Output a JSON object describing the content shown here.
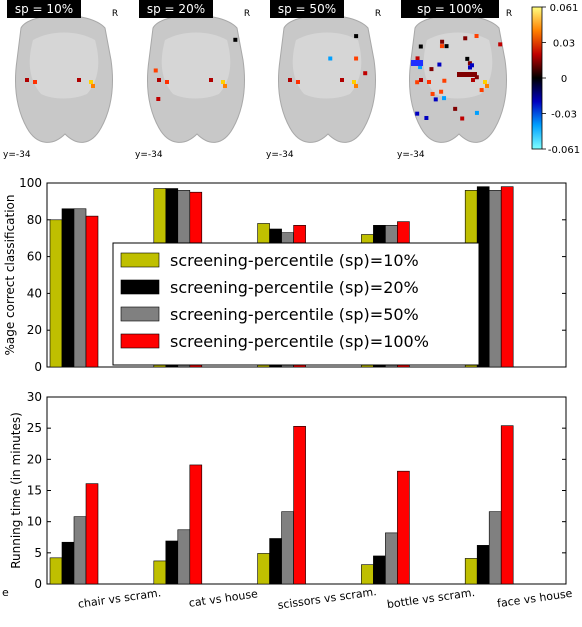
{
  "brain_panels": [
    {
      "label": "sp = 10%",
      "orientation": "R",
      "coord": "y=-34"
    },
    {
      "label": "sp = 20%",
      "orientation": "R",
      "coord": "y=-34"
    },
    {
      "label": "sp = 50%",
      "orientation": "R",
      "coord": "y=-34"
    },
    {
      "label": "sp = 100%",
      "orientation": "R",
      "coord": "y=-34"
    }
  ],
  "colorbar": {
    "ticks": [
      "0.061",
      "0.03",
      "0",
      "-0.03",
      "-0.061"
    ],
    "colors": [
      "#ffff80",
      "#ff8000",
      "#c00000",
      "#000000",
      "#0000c0",
      "#00a0ff",
      "#80ffff"
    ]
  },
  "chart_data": [
    {
      "type": "bar",
      "ylabel": "%age correct classification",
      "ylim": [
        0,
        100
      ],
      "yticks": [
        0,
        20,
        40,
        60,
        80,
        100
      ],
      "legend_position": "center",
      "categories": [
        "chair vs scram.",
        "cat vs house",
        "scissors vs scram.",
        "bottle vs scram.",
        "face vs house"
      ],
      "series": [
        {
          "name": "screening-percentile (sp)=10%",
          "color": "#bfbf00",
          "values": [
            80,
            97,
            78,
            72,
            96
          ]
        },
        {
          "name": "screening-percentile (sp)=20%",
          "color": "#000000",
          "values": [
            86,
            97,
            75,
            77,
            98
          ]
        },
        {
          "name": "screening-percentile (sp)=50%",
          "color": "#808080",
          "values": [
            86,
            96,
            73,
            77,
            96
          ]
        },
        {
          "name": "screening-percentile (sp)=100%",
          "color": "#ff0000",
          "values": [
            82,
            95,
            77,
            79,
            98
          ]
        }
      ]
    },
    {
      "type": "bar",
      "ylabel": "Running time (in minutes)",
      "ylim": [
        0,
        30
      ],
      "yticks": [
        0,
        5,
        10,
        15,
        20,
        25,
        30
      ],
      "categories": [
        "chair vs scram.",
        "cat vs house",
        "scissors vs scram.",
        "bottle vs scram.",
        "face vs house"
      ],
      "xlabel_leading": "e",
      "series": [
        {
          "name": "screening-percentile (sp)=10%",
          "color": "#bfbf00",
          "values": [
            4.2,
            3.7,
            4.9,
            3.1,
            4.1
          ]
        },
        {
          "name": "screening-percentile (sp)=20%",
          "color": "#000000",
          "values": [
            6.7,
            6.9,
            7.3,
            4.5,
            6.2
          ]
        },
        {
          "name": "screening-percentile (sp)=50%",
          "color": "#808080",
          "values": [
            10.8,
            8.7,
            11.6,
            8.2,
            11.6
          ]
        },
        {
          "name": "screening-percentile (sp)=100%",
          "color": "#ff0000",
          "values": [
            16.1,
            19.1,
            25.3,
            18.1,
            25.4
          ]
        }
      ]
    }
  ]
}
